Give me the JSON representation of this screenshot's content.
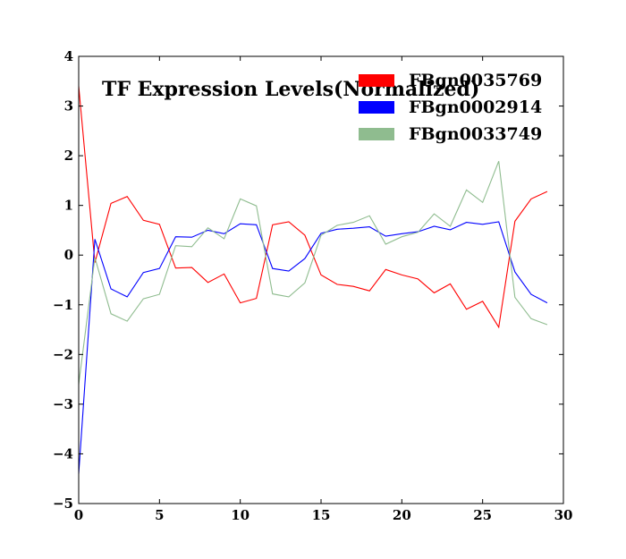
{
  "chart_data": {
    "type": "line",
    "title": "TF Expression Levels(Normalized)",
    "xlabel": "",
    "ylabel": "",
    "xlim": [
      0,
      30
    ],
    "ylim": [
      -5,
      4
    ],
    "xticks": [
      0,
      5,
      10,
      15,
      20,
      25,
      30
    ],
    "yticks": [
      -5,
      -4,
      -3,
      -2,
      -1,
      0,
      1,
      2,
      3,
      4
    ],
    "grid": false,
    "legend_position": "top-right",
    "x": [
      0,
      1,
      2,
      3,
      4,
      5,
      6,
      7,
      8,
      9,
      10,
      11,
      12,
      13,
      14,
      15,
      16,
      17,
      18,
      19,
      20,
      21,
      22,
      23,
      24,
      25,
      26,
      27,
      28,
      29
    ],
    "series": [
      {
        "name": "FBgn0035769",
        "color": "#ff0000",
        "values": [
          3.4,
          -0.15,
          1.04,
          1.18,
          0.7,
          0.62,
          -0.26,
          -0.25,
          -0.55,
          -0.38,
          -0.96,
          -0.87,
          0.61,
          0.67,
          0.4,
          -0.4,
          -0.59,
          -0.63,
          -0.72,
          -0.29,
          -0.4,
          -0.48,
          -0.76,
          -0.58,
          -1.09,
          -0.93,
          -1.45,
          0.68,
          1.13,
          1.28
        ]
      },
      {
        "name": "FBgn0002914",
        "color": "#0000ff",
        "values": [
          -4.4,
          0.32,
          -0.68,
          -0.84,
          -0.35,
          -0.27,
          0.37,
          0.36,
          0.5,
          0.43,
          0.63,
          0.61,
          -0.27,
          -0.32,
          -0.07,
          0.44,
          0.52,
          0.54,
          0.57,
          0.38,
          0.43,
          0.47,
          0.58,
          0.51,
          0.66,
          0.62,
          0.67,
          -0.34,
          -0.79,
          -0.96
        ]
      },
      {
        "name": "FBgn0033749",
        "color": "#8fbc8f",
        "values": [
          -2.6,
          -0.05,
          -1.18,
          -1.33,
          -0.88,
          -0.79,
          0.19,
          0.17,
          0.55,
          0.33,
          1.13,
          0.99,
          -0.78,
          -0.84,
          -0.56,
          0.4,
          0.6,
          0.66,
          0.79,
          0.22,
          0.37,
          0.46,
          0.83,
          0.58,
          1.31,
          1.06,
          1.89,
          -0.85,
          -1.28,
          -1.4
        ]
      }
    ]
  }
}
